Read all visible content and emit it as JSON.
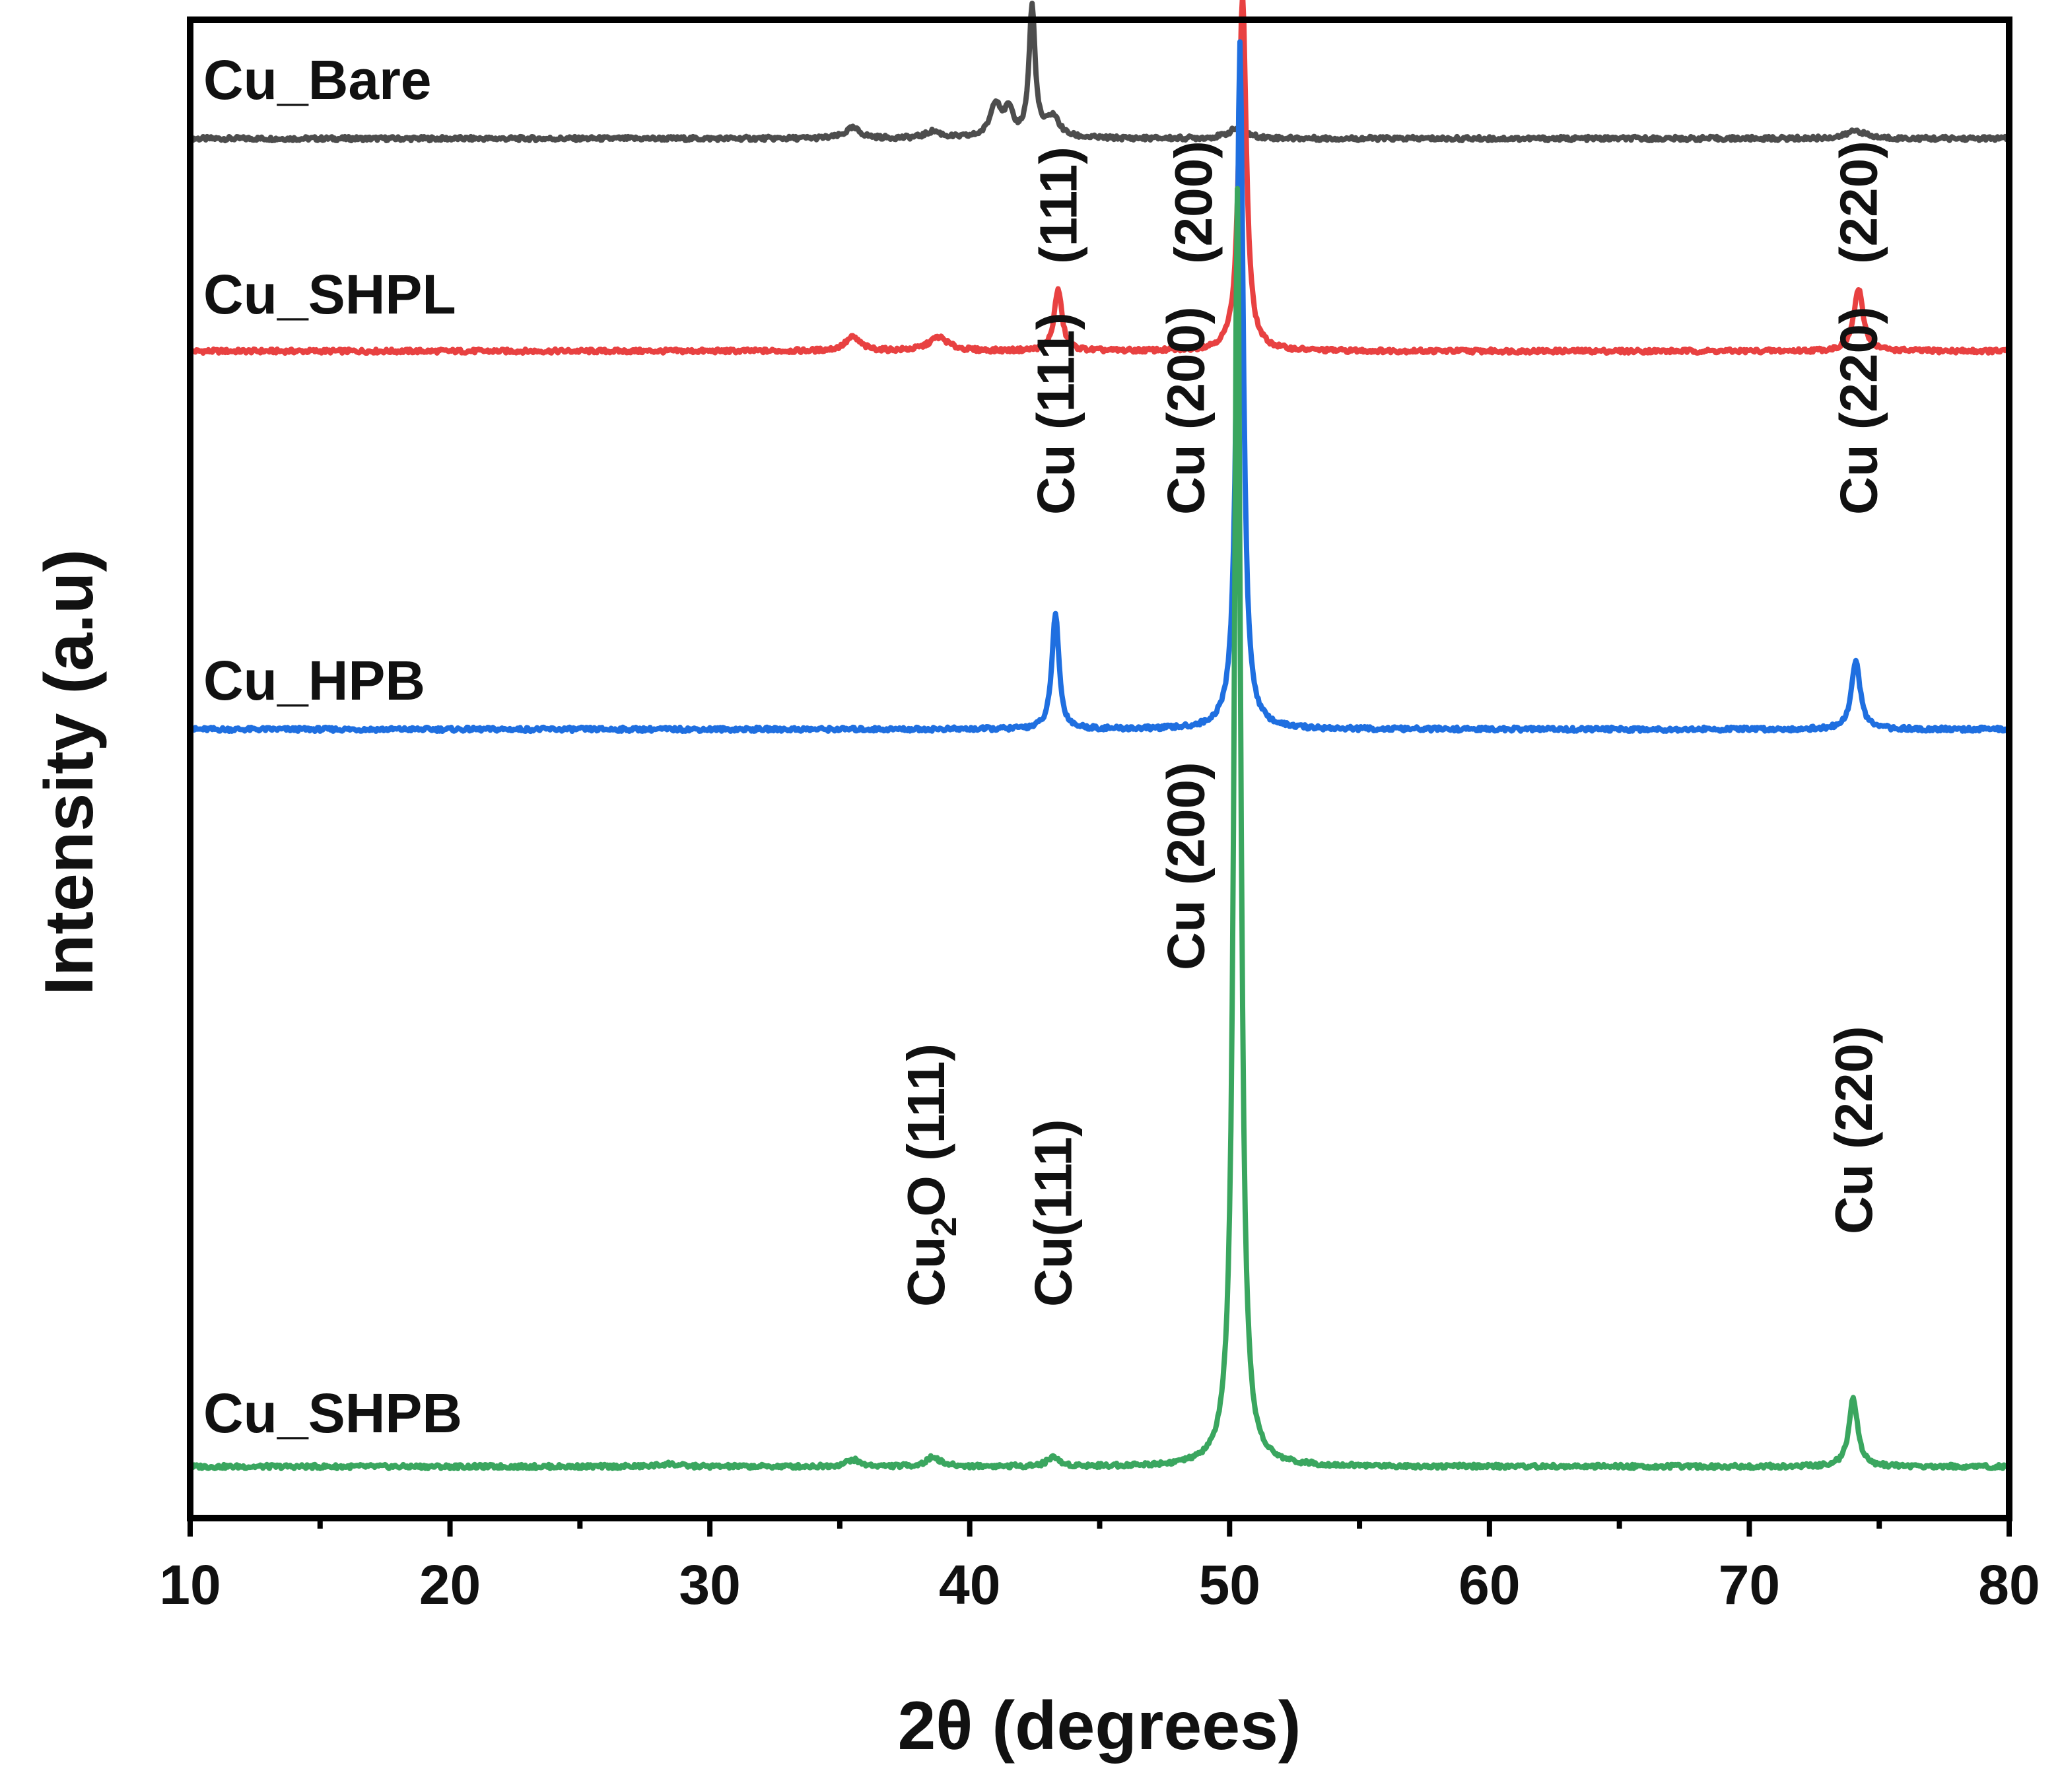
{
  "chart_data": {
    "type": "line",
    "xlabel": "2θ (degrees)",
    "ylabel": "Intensity (a.u)",
    "xlim": [
      10,
      80
    ],
    "xticks": [
      "10",
      "20",
      "30",
      "40",
      "50",
      "60",
      "70",
      "80"
    ],
    "grid": false,
    "legend": "none",
    "series": [
      {
        "name": "Cu_Bare",
        "color": "#4d4d4d",
        "peaks": [
          {
            "x": 35.5,
            "h": 0.015,
            "w": 0.35
          },
          {
            "x": 38.6,
            "h": 0.01,
            "w": 0.35
          },
          {
            "x": 41.0,
            "h": 0.05,
            "w": 0.25
          },
          {
            "x": 41.5,
            "h": 0.035,
            "w": 0.2
          },
          {
            "x": 42.4,
            "h": 0.19,
            "w": 0.14
          },
          {
            "x": 43.2,
            "h": 0.03,
            "w": 0.3
          },
          {
            "x": 50.3,
            "h": 0.015,
            "w": 0.4
          },
          {
            "x": 74.1,
            "h": 0.012,
            "w": 0.4
          }
        ],
        "labels": []
      },
      {
        "name": "Cu_SHPL",
        "color": "#e84141",
        "peaks": [
          {
            "x": 35.5,
            "h": 0.02,
            "w": 0.35
          },
          {
            "x": 38.8,
            "h": 0.02,
            "w": 0.45
          },
          {
            "x": 43.4,
            "h": 0.09,
            "w": 0.18
          },
          {
            "x": 50.5,
            "h": 0.52,
            "w": 0.17
          },
          {
            "x": 74.2,
            "h": 0.09,
            "w": 0.22
          }
        ],
        "labels": [
          {
            "text": "(111)",
            "x": 43.4
          },
          {
            "text": "(200)",
            "x": 48.6
          },
          {
            "text": "(220)",
            "x": 74.2
          }
        ]
      },
      {
        "name": "Cu_HPB",
        "color": "#1f6fe0",
        "peaks": [
          {
            "x": 43.3,
            "h": 0.17,
            "w": 0.16
          },
          {
            "x": 50.4,
            "h": 1.0,
            "w": 0.15
          },
          {
            "x": 74.1,
            "h": 0.1,
            "w": 0.2
          }
        ],
        "labels": [
          {
            "text": "Cu (111)",
            "x": 43.3
          },
          {
            "text": "Cu (200)",
            "x": 48.3
          },
          {
            "text": "Cu (220)",
            "x": 74.2
          }
        ]
      },
      {
        "name": "Cu_SHPB",
        "color": "#3aa65f",
        "peaks": [
          {
            "x": 28.4,
            "h": 0.004,
            "w": 0.4
          },
          {
            "x": 35.5,
            "h": 0.01,
            "w": 0.3
          },
          {
            "x": 38.6,
            "h": 0.014,
            "w": 0.3
          },
          {
            "x": 43.2,
            "h": 0.014,
            "w": 0.25
          },
          {
            "x": 50.3,
            "h": 1.86,
            "w": 0.15
          },
          {
            "x": 74.0,
            "h": 0.1,
            "w": 0.2
          }
        ],
        "labels": [
          {
            "text": "Cu₂O (111)",
            "x": 38.3
          },
          {
            "text": "Cu(111)",
            "x": 43.2
          },
          {
            "text": "Cu (200)",
            "x": 48.3
          },
          {
            "text": "Cu (220)",
            "x": 74.0
          }
        ]
      }
    ]
  }
}
